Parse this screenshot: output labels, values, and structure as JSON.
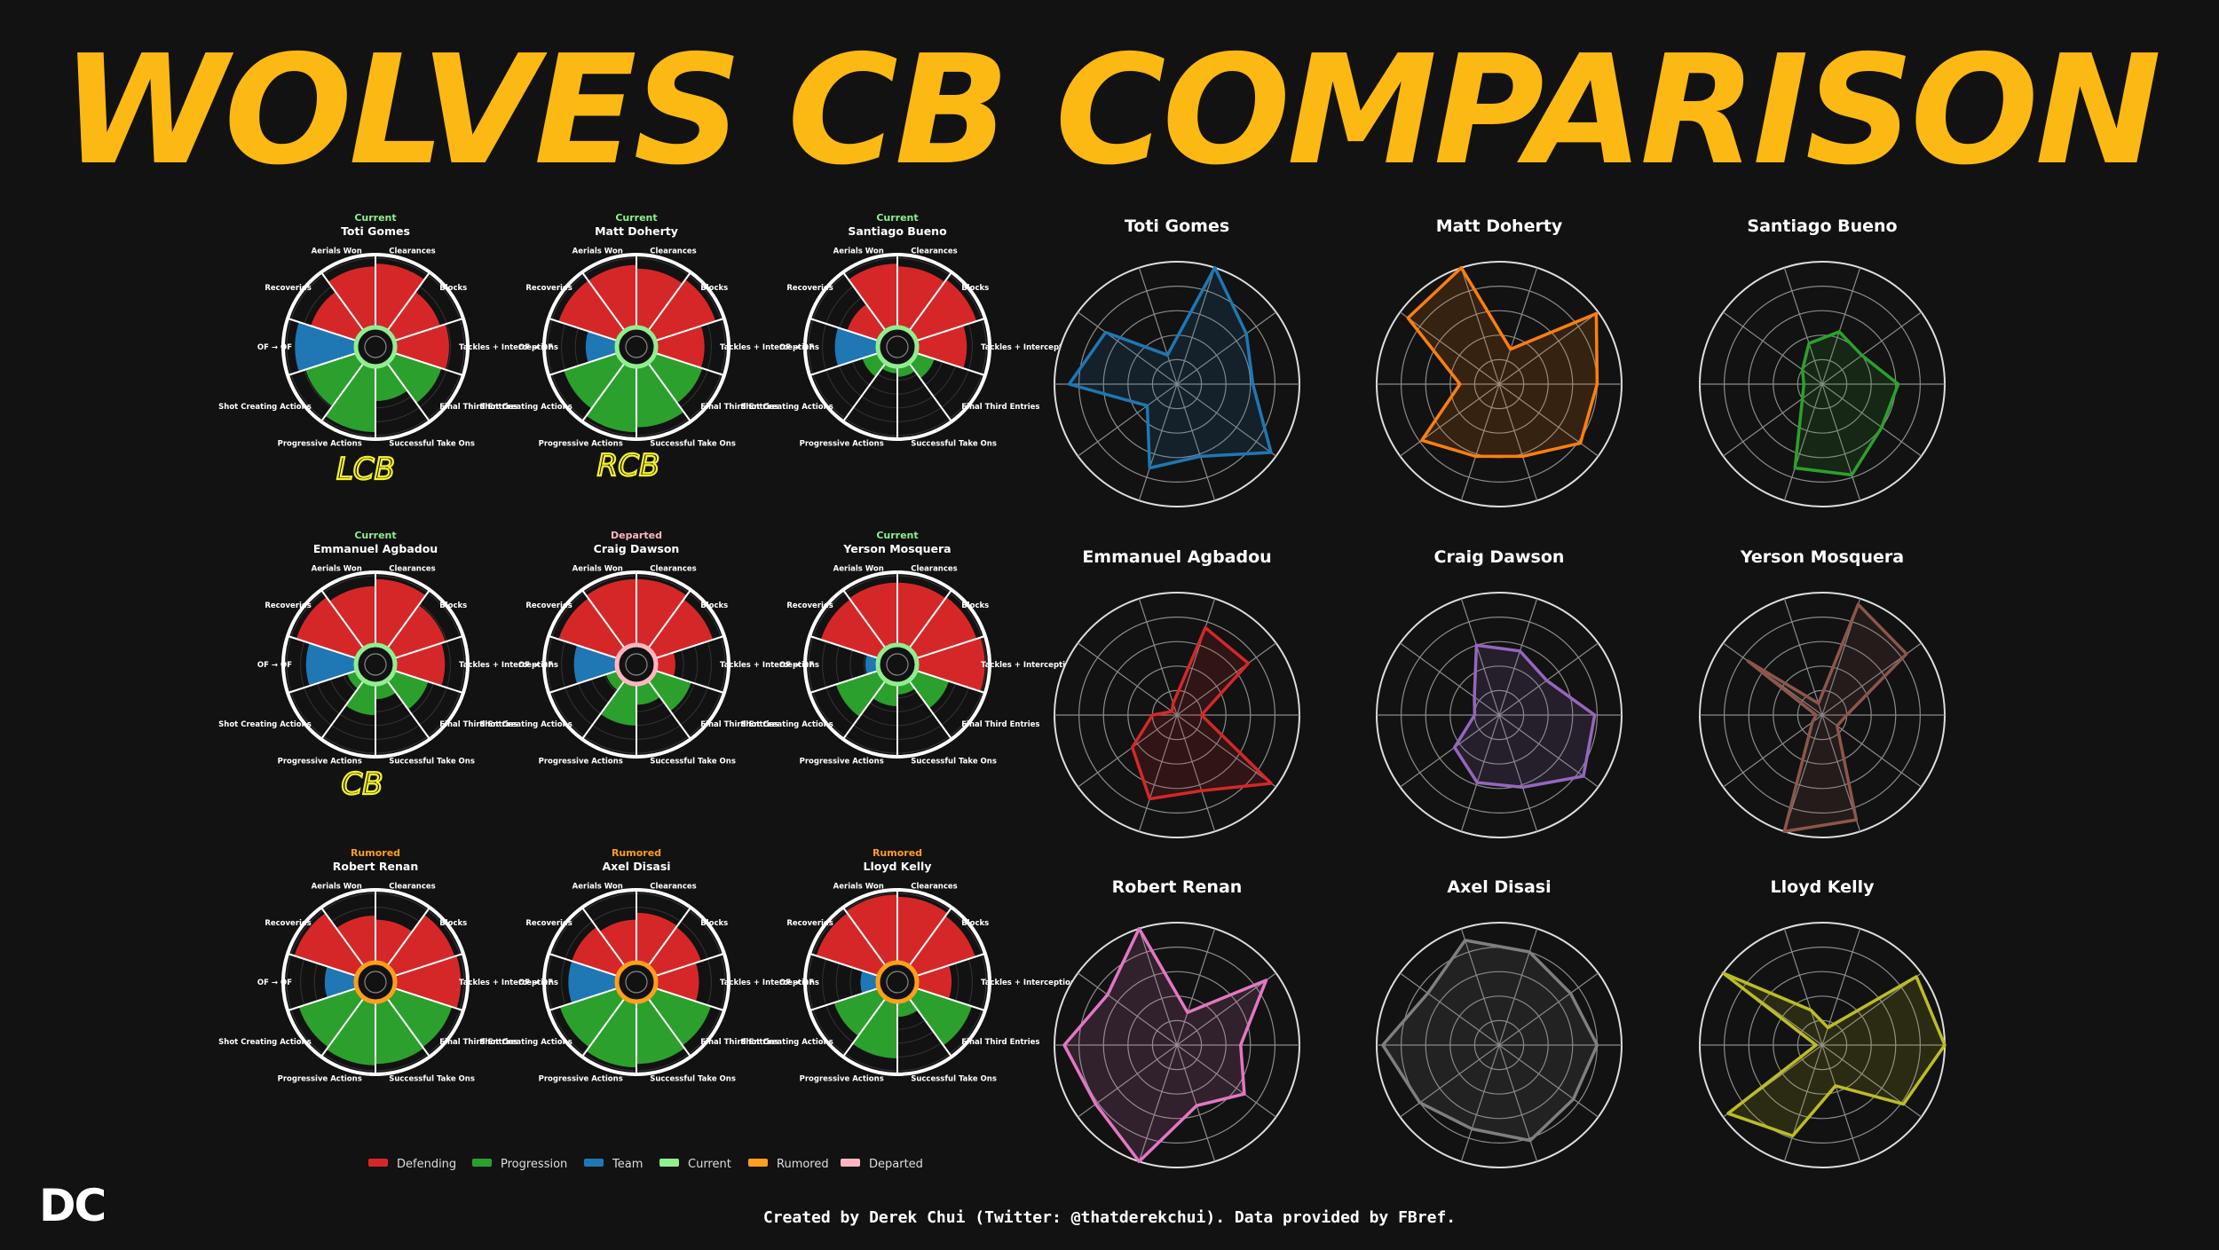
{
  "title": "WOLVES CB COMPARISON",
  "footer": "Created by Derek Chui (Twitter: @thatderekchui). Data provided by FBref.",
  "logo": "DC",
  "colors": {
    "background": "#121212",
    "title": "#FDB913",
    "Defending": "#d62728",
    "Progression": "#2ca02c",
    "Team": "#1f77b4",
    "Current": "#90ee90",
    "Rumored": "#ff9f1c",
    "Departed": "#ffb6c1"
  },
  "legend": [
    {
      "label": "Defending",
      "color": "#d62728"
    },
    {
      "label": "Progression",
      "color": "#2ca02c"
    },
    {
      "label": "Team",
      "color": "#1f77b4"
    },
    {
      "label": "Current",
      "color": "#90ee90"
    },
    {
      "label": "Rumored",
      "color": "#ff9f1c"
    },
    {
      "label": "Departed",
      "color": "#ffb6c1"
    }
  ],
  "annotations": [
    "LCB",
    "RCB",
    "CB"
  ],
  "chart_data": [
    {
      "type": "pizza",
      "params": [
        "Clearances",
        "Blocks",
        "Tackles + Interceptions",
        "Final Third Entries",
        "Successful Take Ons",
        "Progressive Actions",
        "Shot Creating Actions",
        "OF → OF",
        "Recoveries",
        "Aerials Won"
      ],
      "groups": [
        "Defending",
        "Defending",
        "Defending",
        "Progression",
        "Progression",
        "Progression",
        "Progression",
        "Team",
        "Defending",
        "Defending"
      ],
      "value_scale": [
        0,
        100
      ],
      "players": [
        {
          "name": "Toti Gomes",
          "status": "Current",
          "values": [
            92,
            70,
            78,
            72,
            50,
            95,
            78,
            88,
            70,
            88
          ]
        },
        {
          "name": "Matt Doherty",
          "status": "Current",
          "values": [
            85,
            92,
            70,
            72,
            88,
            95,
            82,
            45,
            90,
            90
          ]
        },
        {
          "name": "Santiago Bueno",
          "status": "Current",
          "values": [
            88,
            92,
            72,
            28,
            15,
            10,
            25,
            62,
            48,
            92
          ]
        },
        {
          "name": "Emmanuel Agbadou",
          "status": "Current",
          "values": [
            95,
            78,
            72,
            52,
            22,
            45,
            15,
            72,
            92,
            85
          ]
        },
        {
          "name": "Craig Dawson",
          "status": "Departed",
          "values": [
            95,
            88,
            28,
            55,
            30,
            60,
            18,
            62,
            90,
            95
          ]
        },
        {
          "name": "Yerson Mosquera",
          "status": "Current",
          "values": [
            90,
            92,
            98,
            50,
            15,
            32,
            65,
            18,
            88,
            90
          ]
        },
        {
          "name": "Robert Renan",
          "status": "Rumored",
          "values": [
            62,
            92,
            95,
            88,
            90,
            92,
            88,
            45,
            95,
            68
          ]
        },
        {
          "name": "Axel Disasi",
          "status": "Rumored",
          "values": [
            72,
            70,
            62,
            85,
            90,
            95,
            88,
            70,
            70,
            62
          ]
        },
        {
          "name": "Lloyd Kelly",
          "status": "Rumored",
          "values": [
            95,
            90,
            50,
            85,
            22,
            82,
            68,
            25,
            95,
            98
          ]
        }
      ]
    },
    {
      "type": "radar",
      "axes": 10,
      "value_scale": [
        0,
        100
      ],
      "players": [
        {
          "name": "Toti Gomes",
          "color": "#1f77b4",
          "values": [
            62,
            95,
            62,
            72,
            30,
            88,
            72,
            25,
            100,
            70
          ]
        },
        {
          "name": "Matt Doherty",
          "color": "#ff7f0e",
          "values": [
            80,
            82,
            62,
            62,
            78,
            32,
            92,
            100,
            30,
            98
          ]
        },
        {
          "name": "Santiago Bueno",
          "color": "#2ca02c",
          "values": [
            62,
            60,
            78,
            72,
            20,
            15,
            20,
            35,
            45,
            40
          ]
        },
        {
          "name": "Emmanuel Agbadou",
          "color": "#d62728",
          "values": [
            20,
            95,
            65,
            72,
            45,
            20,
            5,
            10,
            75,
            72
          ]
        },
        {
          "name": "Craig Dawson",
          "color": "#9467bd",
          "values": [
            78,
            85,
            62,
            58,
            45,
            20,
            25,
            60,
            55,
            48
          ]
        },
        {
          "name": "Yerson Mosquera",
          "color": "#8c564b",
          "values": [
            20,
            15,
            90,
            100,
            10,
            5,
            75,
            10,
            95,
            85
          ]
        },
        {
          "name": "Robert Renan",
          "color": "#e377c2",
          "values": [
            52,
            68,
            52,
            100,
            82,
            92,
            70,
            100,
            28,
            90
          ]
        },
        {
          "name": "Axel Disasi",
          "color": "#7f7f7f",
          "values": [
            80,
            75,
            82,
            72,
            80,
            95,
            72,
            90,
            80,
            72
          ]
        },
        {
          "name": "Lloyd Kelly",
          "color": "#bcbd22",
          "values": [
            100,
            82,
            35,
            78,
            95,
            5,
            100,
            30,
            15,
            95
          ]
        }
      ]
    }
  ]
}
